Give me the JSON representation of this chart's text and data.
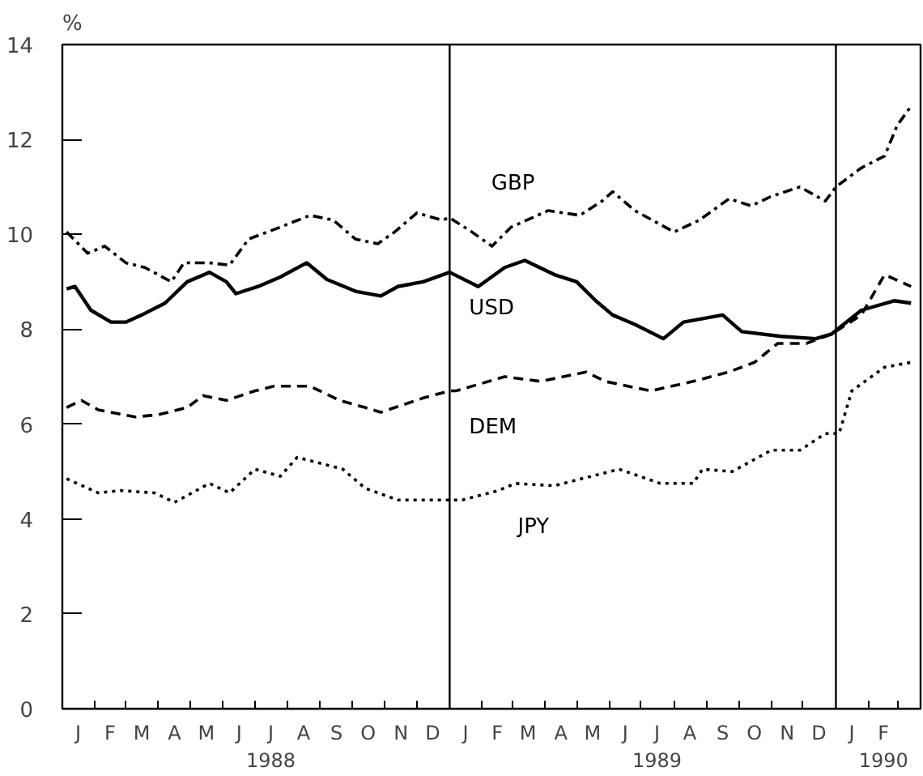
{
  "chart_data": {
    "type": "line",
    "ylabel": "%",
    "xlim": [
      "1988-01-01",
      "1990-03-22"
    ],
    "ylim": [
      0,
      14
    ],
    "yticks": [
      0,
      2,
      4,
      6,
      8,
      10,
      12,
      14
    ],
    "xticks": [
      {
        "value": "1988-01-16",
        "label": "J"
      },
      {
        "value": "1988-02-15",
        "label": "F"
      },
      {
        "value": "1988-03-16",
        "label": "M"
      },
      {
        "value": "1988-04-16",
        "label": "A"
      },
      {
        "value": "1988-05-16",
        "label": "M"
      },
      {
        "value": "1988-06-16",
        "label": "J"
      },
      {
        "value": "1988-07-16",
        "label": "J\n1988"
      },
      {
        "value": "1988-08-16",
        "label": "A"
      },
      {
        "value": "1988-09-16",
        "label": "S"
      },
      {
        "value": "1988-10-16",
        "label": "O"
      },
      {
        "value": "1988-11-16",
        "label": "N"
      },
      {
        "value": "1988-12-16",
        "label": "D"
      },
      {
        "value": "1989-01-16",
        "label": "J"
      },
      {
        "value": "1989-02-15",
        "label": "F"
      },
      {
        "value": "1989-03-16",
        "label": "M"
      },
      {
        "value": "1989-04-16",
        "label": "A"
      },
      {
        "value": "1989-05-16",
        "label": "M"
      },
      {
        "value": "1989-06-16",
        "label": "J"
      },
      {
        "value": "1989-07-16",
        "label": "J\n1989"
      },
      {
        "value": "1989-08-16",
        "label": "A"
      },
      {
        "value": "1989-09-16",
        "label": "S"
      },
      {
        "value": "1989-10-16",
        "label": "O"
      },
      {
        "value": "1989-11-16",
        "label": "N"
      },
      {
        "value": "1989-12-16",
        "label": "D"
      },
      {
        "value": "1990-01-16",
        "label": "J"
      },
      {
        "value": "1990-02-15",
        "label": "F\n1990"
      },
      {
        "value": "1988-02-01",
        "label": null
      },
      {
        "value": "1988-03-01",
        "label": null
      },
      {
        "value": "1988-04-01",
        "label": null
      },
      {
        "value": "1988-05-01",
        "label": null
      },
      {
        "value": "1988-06-01",
        "label": null
      },
      {
        "value": "1988-07-01",
        "label": null
      },
      {
        "value": "1988-08-01",
        "label": null
      },
      {
        "value": "1988-09-01",
        "label": null
      },
      {
        "value": "1988-10-01",
        "label": null
      },
      {
        "value": "1988-11-01",
        "label": null
      },
      {
        "value": "1988-12-01",
        "label": null
      },
      {
        "value": "1989-02-01",
        "label": null
      },
      {
        "value": "1989-03-01",
        "label": null
      },
      {
        "value": "1989-04-01",
        "label": null
      },
      {
        "value": "1989-05-01",
        "label": null
      },
      {
        "value": "1989-06-01",
        "label": null
      },
      {
        "value": "1989-07-01",
        "label": null
      },
      {
        "value": "1989-08-01",
        "label": null
      },
      {
        "value": "1989-09-01",
        "label": null
      },
      {
        "value": "1989-10-01",
        "label": null
      },
      {
        "value": "1989-11-01",
        "label": null
      },
      {
        "value": "1989-12-01",
        "label": null
      },
      {
        "value": "1990-02-01",
        "label": null
      },
      {
        "value": "1990-03-01",
        "label": null
      }
    ],
    "ref_lines": [
      {
        "axis": "x",
        "value": "1989-01-01",
        "color": "#000000"
      },
      {
        "axis": "x",
        "value": "1990-01-01",
        "color": "#000000"
      }
    ],
    "grid": false,
    "marker": "none",
    "series": [
      {
        "name": "GBP",
        "color": "#000000",
        "line_style": "dashdot",
        "x": [
          "1988-01-05",
          "1988-01-25",
          "1988-02-10",
          "1988-03-01",
          "1988-03-19",
          "1988-04-13",
          "1988-04-25",
          "1988-05-19",
          "1988-06-07",
          "1988-06-25",
          "1988-07-19",
          "1988-08-22",
          "1988-09-13",
          "1988-10-04",
          "1988-10-25",
          "1988-11-10",
          "1988-12-01",
          "1988-12-25",
          "1989-01-01",
          "1989-01-22",
          "1989-02-10",
          "1989-02-28",
          "1989-04-04",
          "1989-05-04",
          "1989-05-25",
          "1989-06-04",
          "1989-06-25",
          "1989-08-01",
          "1989-08-25",
          "1989-09-22",
          "1989-10-13",
          "1989-11-01",
          "1989-11-28",
          "1989-12-22",
          "1990-01-01",
          "1990-01-25",
          "1990-02-16",
          "1990-02-28",
          "1990-03-13"
        ],
        "values": [
          10.05,
          9.6,
          9.75,
          9.4,
          9.3,
          9.0,
          9.4,
          9.4,
          9.35,
          9.9,
          10.1,
          10.4,
          10.3,
          9.9,
          9.8,
          10.05,
          10.45,
          10.3,
          10.35,
          10.05,
          9.75,
          10.15,
          10.5,
          10.4,
          10.7,
          10.9,
          10.5,
          10.05,
          10.3,
          10.75,
          10.6,
          10.8,
          11.0,
          10.7,
          11.0,
          11.4,
          11.65,
          12.3,
          12.7
        ]
      },
      {
        "name": "USD",
        "color": "#000000",
        "line_style": "solid",
        "x": [
          "1988-01-05",
          "1988-01-13",
          "1988-01-28",
          "1988-02-16",
          "1988-03-01",
          "1988-03-16",
          "1988-04-07",
          "1988-04-28",
          "1988-05-19",
          "1988-06-04",
          "1988-06-13",
          "1988-07-04",
          "1988-07-25",
          "1988-08-19",
          "1988-09-07",
          "1988-10-04",
          "1988-10-28",
          "1988-11-13",
          "1988-12-07",
          "1989-01-01",
          "1989-01-28",
          "1989-02-22",
          "1989-03-13",
          "1989-04-10",
          "1989-05-01",
          "1989-05-19",
          "1989-06-04",
          "1989-06-25",
          "1989-07-22",
          "1989-08-10",
          "1989-09-16",
          "1989-10-04",
          "1989-11-10",
          "1989-12-13",
          "1989-12-28",
          "1990-01-25",
          "1990-02-25",
          "1990-03-13"
        ],
        "values": [
          8.85,
          8.9,
          8.4,
          8.15,
          8.15,
          8.3,
          8.55,
          9.0,
          9.2,
          9.0,
          8.75,
          8.9,
          9.1,
          9.4,
          9.05,
          8.8,
          8.7,
          8.9,
          9.0,
          9.2,
          8.9,
          9.3,
          9.45,
          9.15,
          9.0,
          8.6,
          8.3,
          8.1,
          7.8,
          8.15,
          8.3,
          7.95,
          7.85,
          7.8,
          7.9,
          8.4,
          8.6,
          8.55
        ]
      },
      {
        "name": "DEM",
        "color": "#000000",
        "line_style": "dashed",
        "x": [
          "1988-01-05",
          "1988-01-19",
          "1988-02-04",
          "1988-03-10",
          "1988-04-01",
          "1988-04-28",
          "1988-05-13",
          "1988-06-04",
          "1988-07-01",
          "1988-07-19",
          "1988-08-22",
          "1988-09-19",
          "1988-10-13",
          "1988-10-28",
          "1988-12-07",
          "1989-01-01",
          "1989-01-07",
          "1989-02-22",
          "1989-03-28",
          "1989-05-10",
          "1989-05-28",
          "1989-07-10",
          "1989-08-19",
          "1989-09-22",
          "1989-10-16",
          "1989-11-07",
          "1989-12-04",
          "1989-12-28",
          "1990-01-25",
          "1990-02-16",
          "1990-03-13"
        ],
        "values": [
          6.35,
          6.5,
          6.3,
          6.15,
          6.2,
          6.35,
          6.6,
          6.5,
          6.7,
          6.8,
          6.8,
          6.5,
          6.35,
          6.25,
          6.55,
          6.7,
          6.7,
          7.0,
          6.9,
          7.1,
          6.9,
          6.7,
          6.9,
          7.1,
          7.3,
          7.7,
          7.7,
          7.9,
          8.3,
          9.15,
          8.9
        ]
      },
      {
        "name": "JPY",
        "color": "#000000",
        "line_style": "dotted",
        "x": [
          "1988-01-05",
          "1988-02-04",
          "1988-02-25",
          "1988-03-28",
          "1988-04-16",
          "1988-05-19",
          "1988-06-07",
          "1988-07-01",
          "1988-07-25",
          "1988-08-10",
          "1988-09-22",
          "1988-10-13",
          "1988-11-13",
          "1989-01-01",
          "1989-01-13",
          "1989-02-16",
          "1989-03-04",
          "1989-04-10",
          "1989-06-10",
          "1989-07-19",
          "1989-08-19",
          "1989-08-28",
          "1989-09-25",
          "1989-11-01",
          "1989-11-28",
          "1989-12-22",
          "1990-01-04",
          "1990-01-16",
          "1990-02-16",
          "1990-03-13"
        ],
        "values": [
          4.85,
          4.55,
          4.6,
          4.55,
          4.35,
          4.75,
          4.55,
          5.05,
          4.9,
          5.3,
          5.05,
          4.65,
          4.4,
          4.4,
          4.4,
          4.6,
          4.75,
          4.7,
          5.05,
          4.75,
          4.75,
          5.05,
          5.0,
          5.45,
          5.45,
          5.8,
          5.8,
          6.7,
          7.2,
          7.3
        ]
      }
    ]
  }
}
